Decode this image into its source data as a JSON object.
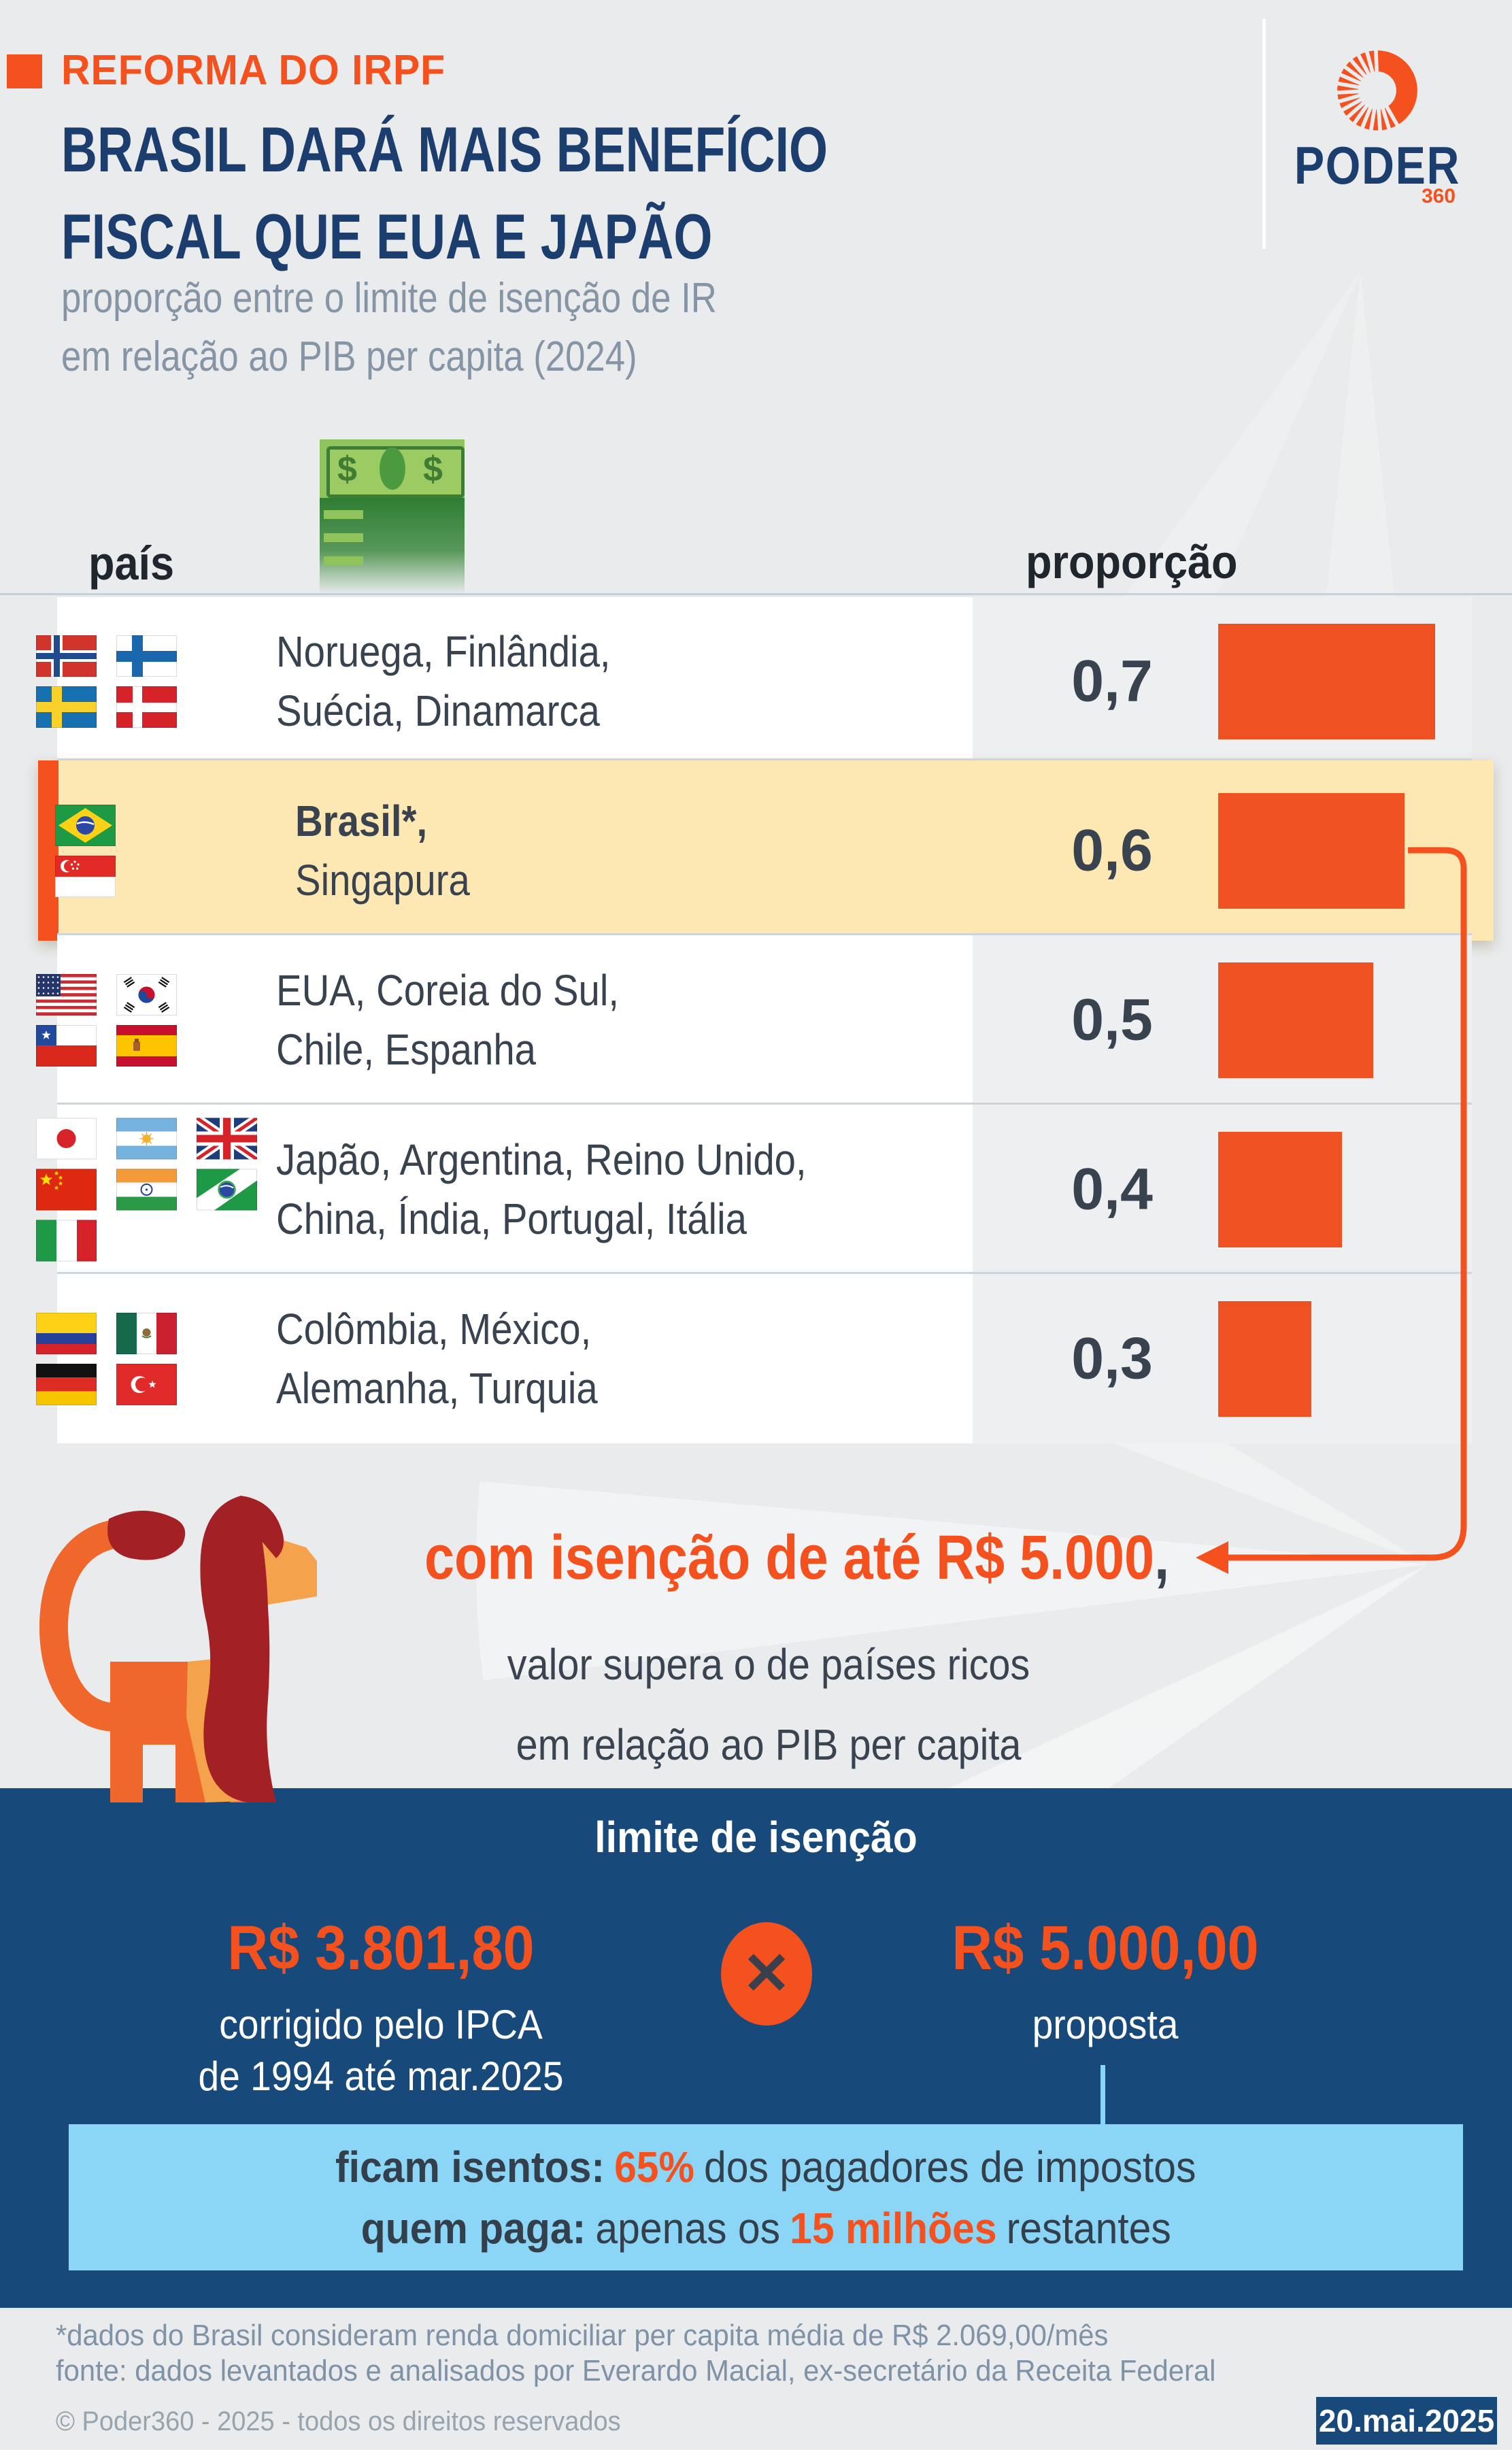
{
  "colors": {
    "accent_orange": "#F4511E",
    "bar_orange": "#F05123",
    "title_navy": "#1C3E6E",
    "band_navy": "#17497B",
    "highlight_yellow": "#FDE7B3",
    "exempt_blue": "#8BD5F6",
    "text_dark": "#3A4450",
    "text_gray": "#8595A6"
  },
  "header": {
    "kicker": "REFORMA DO IRPF",
    "title_line1": "BRASIL DARÁ MAIS BENEFÍCIO",
    "title_line2": "FISCAL QUE EUA E JAPÃO",
    "subtitle_line1": "proporção entre o limite de isenção de IR",
    "subtitle_line2": "em relação ao PIB per capita (2024)"
  },
  "logo": {
    "name": "PODER",
    "suffix": "360",
    "icon": "sunburst-icon"
  },
  "table": {
    "country_header": "país",
    "ratio_header": "proporção",
    "money_icon": "money-stack-icon",
    "rows": [
      {
        "names_line1": "Noruega, Finlândia,",
        "names_line2": "Suécia, Dinamarca",
        "flags": [
          "norway",
          "finland",
          "sweden",
          "denmark"
        ],
        "flag_cols": 2,
        "value": 0.7,
        "value_label": "0,7",
        "highlight": false
      },
      {
        "names_line1": "Brasil*,",
        "names_line2": "Singapura",
        "flags": [
          "brazil",
          "singapore"
        ],
        "flag_cols": 1,
        "value": 0.6,
        "value_label": "0,6",
        "highlight": true
      },
      {
        "names_line1": "EUA, Coreia do Sul,",
        "names_line2": "Chile, Espanha",
        "flags": [
          "usa",
          "south-korea",
          "chile",
          "spain"
        ],
        "flag_cols": 2,
        "value": 0.5,
        "value_label": "0,5",
        "highlight": false
      },
      {
        "names_line1": "Japão, Argentina, Reino Unido,",
        "names_line2": "China, Índia, Portugal, Itália",
        "flags": [
          "japan",
          "argentina",
          "uk",
          "china",
          "india",
          "portugal",
          "italy"
        ],
        "flag_cols": 3,
        "value": 0.4,
        "value_label": "0,4",
        "highlight": false
      },
      {
        "names_line1": "Colômbia, México,",
        "names_line2": "Alemanha, Turquia",
        "flags": [
          "colombia",
          "mexico",
          "germany",
          "turkey"
        ],
        "flag_cols": 2,
        "value": 0.3,
        "value_label": "0,3",
        "highlight": false
      }
    ]
  },
  "chart_data": {
    "type": "bar",
    "orientation": "horizontal",
    "title": "BRASIL DARÁ MAIS BENEFÍCIO FISCAL QUE EUA E JAPÃO",
    "subtitle": "proporção entre o limite de isenção de IR em relação ao PIB per capita (2024)",
    "categories": [
      "Noruega, Finlândia, Suécia, Dinamarca",
      "Brasil*, Singapura",
      "EUA, Coreia do Sul, Chile, Espanha",
      "Japão, Argentina, Reino Unido, China, Índia, Portugal, Itália",
      "Colômbia, México, Alemanha, Turquia"
    ],
    "values": [
      0.7,
      0.6,
      0.5,
      0.4,
      0.3
    ],
    "highlighted_category": "Brasil*, Singapura",
    "xlabel": "proporção",
    "ylabel": "país",
    "xlim": [
      0,
      0.75
    ],
    "bar_color": "#F05123",
    "grid": false,
    "legend": "none"
  },
  "callout": {
    "icon": "lion-illustration",
    "arrow": "left-arrow-connector",
    "highlight": "com isenção de até R$ 5.000",
    "after_highlight": ",",
    "line2": "valor supera o de países ricos",
    "line3": "em relação ao PIB per capita"
  },
  "limit_section": {
    "title": "limite de isenção",
    "current_value": "R$ 3.801,80",
    "current_desc_line1": "corrigido pelo IPCA",
    "current_desc_line2": "de 1994 até mar.2025",
    "versus_icon": "x-icon",
    "proposed_value": "R$ 5.000,00",
    "proposed_desc": "proposta"
  },
  "exempt_box": {
    "label1": "ficam isentos:",
    "value1": "65%",
    "rest1": "dos pagadores de impostos",
    "label2": "quem paga:",
    "mid2": "apenas os",
    "value2": "15 milhões",
    "rest2": "restantes"
  },
  "footer": {
    "note_line1": "*dados do Brasil consideram renda domiciliar per capita média de R$ 2.069,00/mês",
    "note_line2": "fonte: dados levantados e analisados por Everardo Macial, ex-secretário da Receita Federal",
    "copyright": "© Poder360 - 2025 - todos os direitos reservados",
    "date": "20.mai.2025"
  }
}
